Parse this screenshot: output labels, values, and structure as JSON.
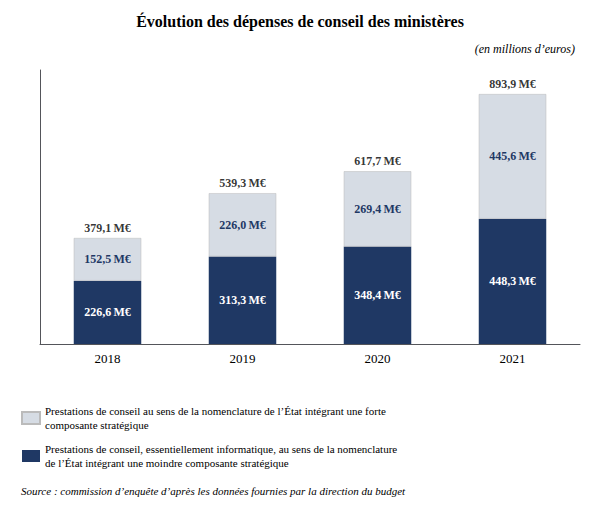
{
  "chart_data": {
    "type": "bar",
    "title": "Évolution des dépenses de conseil des ministères",
    "subtitle": "(en millions d’euros)",
    "categories": [
      "2018",
      "2019",
      "2020",
      "2021"
    ],
    "stacked": true,
    "data_labels": true,
    "legend": "bottom",
    "grid": false,
    "tick_labels": "x",
    "ylim": [
      0,
      980
    ],
    "series": [
      {
        "name": "Prestations de conseil, essentiellement informatique, au sens de la nomenclature\nde l’État intégrant une moindre composante stratégique",
        "color": "#1f3864",
        "values": [
          226.6,
          313.3,
          348.4,
          448.3
        ],
        "value_labels": [
          "226,6 M€",
          "313,3 M€",
          "348,4 M€",
          "448,3 M€"
        ]
      },
      {
        "name": "Prestations de conseil au sens de la nomenclature de l’État intégrant une forte\ncomposante stratégique",
        "color": "#d6dce4",
        "values": [
          152.5,
          226.0,
          269.4,
          445.6
        ],
        "value_labels": [
          "152,5 M€",
          "226,0 M€",
          "269,4 M€",
          "445,6 M€"
        ]
      }
    ],
    "totals": [
      379.1,
      539.3,
      617.7,
      893.9
    ],
    "total_labels": [
      "379,1 M€",
      "539,3 M€",
      "617,7 M€",
      "893,9 M€"
    ],
    "source": "Source : commission d’enquête d’après les données fournies par la direction du budget"
  }
}
